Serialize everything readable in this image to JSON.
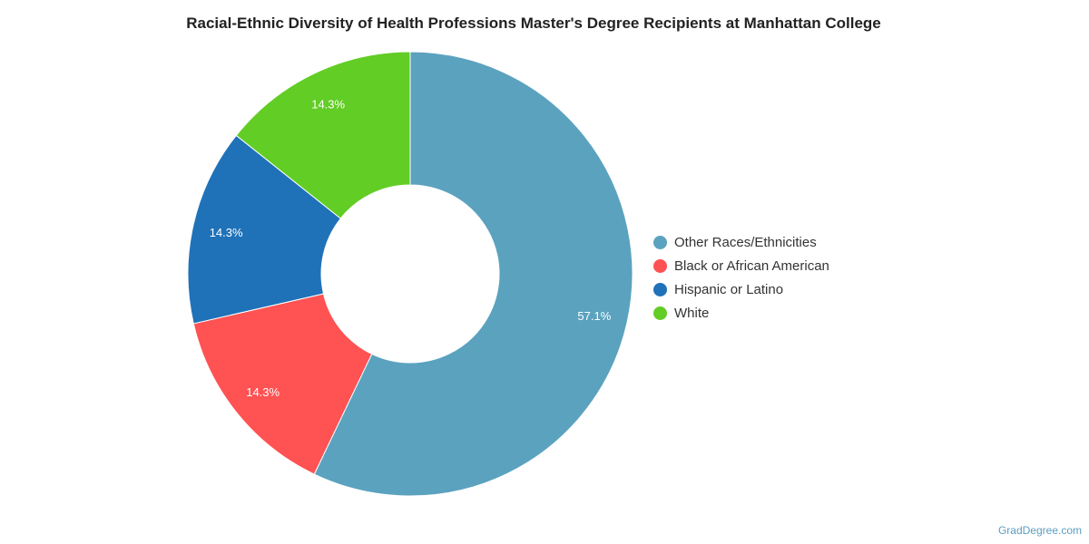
{
  "chart_data": {
    "type": "pie",
    "variant": "donut",
    "title": "Racial-Ethnic Diversity of Health Professions Master's Degree Recipients at Manhattan College",
    "slices": [
      {
        "name": "Other Races/Ethnicities",
        "value": 57.1,
        "label": "57.1%",
        "color": "#5ba2bf"
      },
      {
        "name": "Black or African American",
        "value": 14.3,
        "label": "14.3%",
        "color": "#ff5252"
      },
      {
        "name": "Hispanic or Latino",
        "value": 14.3,
        "label": "14.3%",
        "color": "#1f72b8"
      },
      {
        "name": "White",
        "value": 14.3,
        "label": "14.3%",
        "color": "#62cd25"
      }
    ],
    "legend_position": "right"
  },
  "credit": "GradDegree.com"
}
